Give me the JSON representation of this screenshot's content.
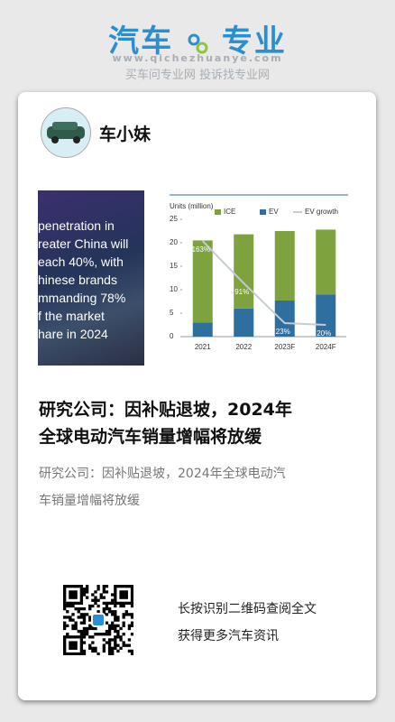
{
  "header": {
    "logo_left": "汽车",
    "logo_right": "专业",
    "url": "www.qichezhuanye.com",
    "slogan": "买车问专业网 投诉找专业网"
  },
  "author": {
    "name": "车小妹"
  },
  "image": {
    "overlay_lines": [
      "penetration in",
      "reater China will",
      "each 40%, with",
      "hinese brands",
      "mmanding 78%",
      "f the market",
      "hare in 2024"
    ]
  },
  "chart_data": {
    "type": "bar",
    "stacked": true,
    "y_label": "Units (million)",
    "categories": [
      "2021",
      "2022",
      "2023F",
      "2024F"
    ],
    "series": [
      {
        "name": "ICE",
        "color": "#7da23e",
        "values": [
          17.5,
          15.8,
          14.8,
          13.8
        ]
      },
      {
        "name": "EV",
        "color": "#2f6f9f",
        "values": [
          3,
          6,
          7.7,
          9
        ]
      },
      {
        "name": "EV growth",
        "color": "#c4ccd6",
        "type": "line",
        "axis": "y2",
        "values": [
          163,
          91,
          23,
          20
        ],
        "value_labels": [
          "163%",
          "91%",
          "23%",
          "20%"
        ]
      }
    ],
    "ylim": [
      0,
      25
    ],
    "yticks": [
      0,
      5,
      10,
      15,
      20,
      25
    ],
    "y2lim": [
      0,
      200
    ]
  },
  "article": {
    "title_lines": [
      "研究公司：因补贴退坡，2024年",
      "全球电动汽车销量增幅将放缓"
    ],
    "summary_lines": [
      "研究公司：因补贴退坡，2024年全球电动汽",
      "车销量增幅将放缓"
    ]
  },
  "footer": {
    "lines": [
      "长按识别二维码查阅全文",
      "获得更多汽车资讯"
    ]
  }
}
